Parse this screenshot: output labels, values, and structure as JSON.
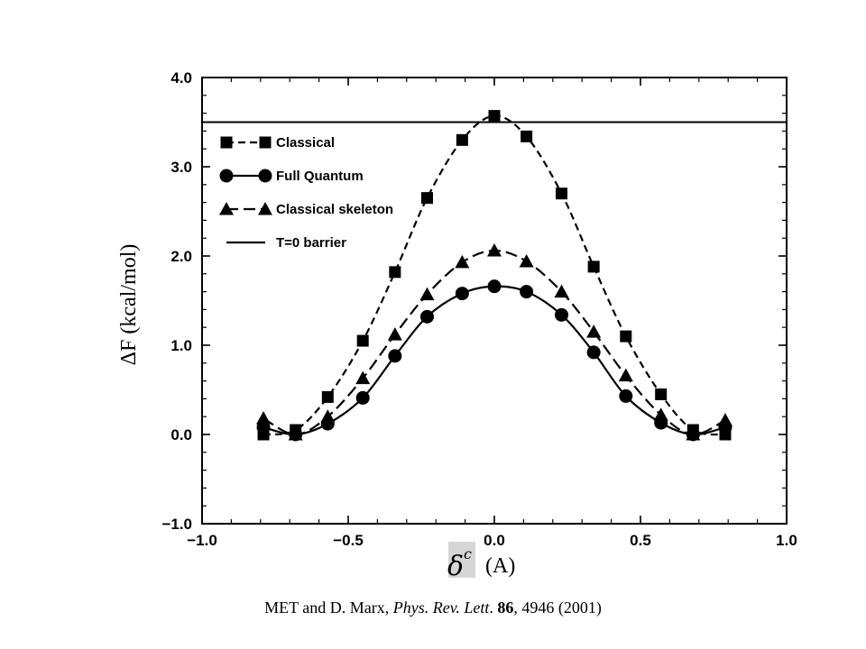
{
  "chart_data": {
    "type": "line",
    "xlabel_symbol": "δ",
    "xlabel_sup": "c",
    "xlabel_unit": "(A)",
    "ylabel": "ΔF (kcal/mol)",
    "xlim": [
      -1.0,
      1.0
    ],
    "ylim": [
      -1.0,
      4.0
    ],
    "xticks": [
      "−1.0",
      "−0.5",
      "0.0",
      "0.5",
      "1.0"
    ],
    "xtick_values": [
      -1.0,
      -0.5,
      0.0,
      0.5,
      1.0
    ],
    "yticks": [
      "4.0",
      "3.0",
      "2.0",
      "1.0",
      "0.0",
      "−1.0"
    ],
    "ytick_values": [
      4.0,
      3.0,
      2.0,
      1.0,
      0.0,
      -1.0
    ],
    "x": [
      -0.79,
      -0.68,
      -0.57,
      -0.45,
      -0.34,
      -0.23,
      -0.11,
      0.0,
      0.11,
      0.23,
      0.34,
      0.45,
      0.57,
      0.68,
      0.79
    ],
    "series": [
      {
        "name": "Classical",
        "marker": "square",
        "line": "dashed",
        "values": [
          0.0,
          0.05,
          0.42,
          1.05,
          1.82,
          2.65,
          3.3,
          3.57,
          3.34,
          2.7,
          1.88,
          1.1,
          0.45,
          0.05,
          0.0
        ]
      },
      {
        "name": "Full Quantum",
        "marker": "circle",
        "line": "solid",
        "values": [
          0.08,
          0.0,
          0.12,
          0.41,
          0.88,
          1.32,
          1.58,
          1.66,
          1.6,
          1.34,
          0.92,
          0.43,
          0.13,
          0.0,
          0.08
        ]
      },
      {
        "name": "Classical skeleton",
        "marker": "triangle",
        "line": "longdash",
        "values": [
          0.18,
          0.0,
          0.2,
          0.63,
          1.12,
          1.57,
          1.93,
          2.06,
          1.94,
          1.6,
          1.15,
          0.66,
          0.22,
          0.0,
          0.16
        ]
      }
    ],
    "reference_line": {
      "name": "T=0 barrier",
      "y": 3.5
    },
    "legend_position": "top-left",
    "grid": false
  },
  "citation": {
    "authors": "MET and D. Marx, ",
    "journal": "Phys. Rev. Lett",
    "sep": ". ",
    "volume": "86",
    "rest": ", 4946 (2001)"
  }
}
